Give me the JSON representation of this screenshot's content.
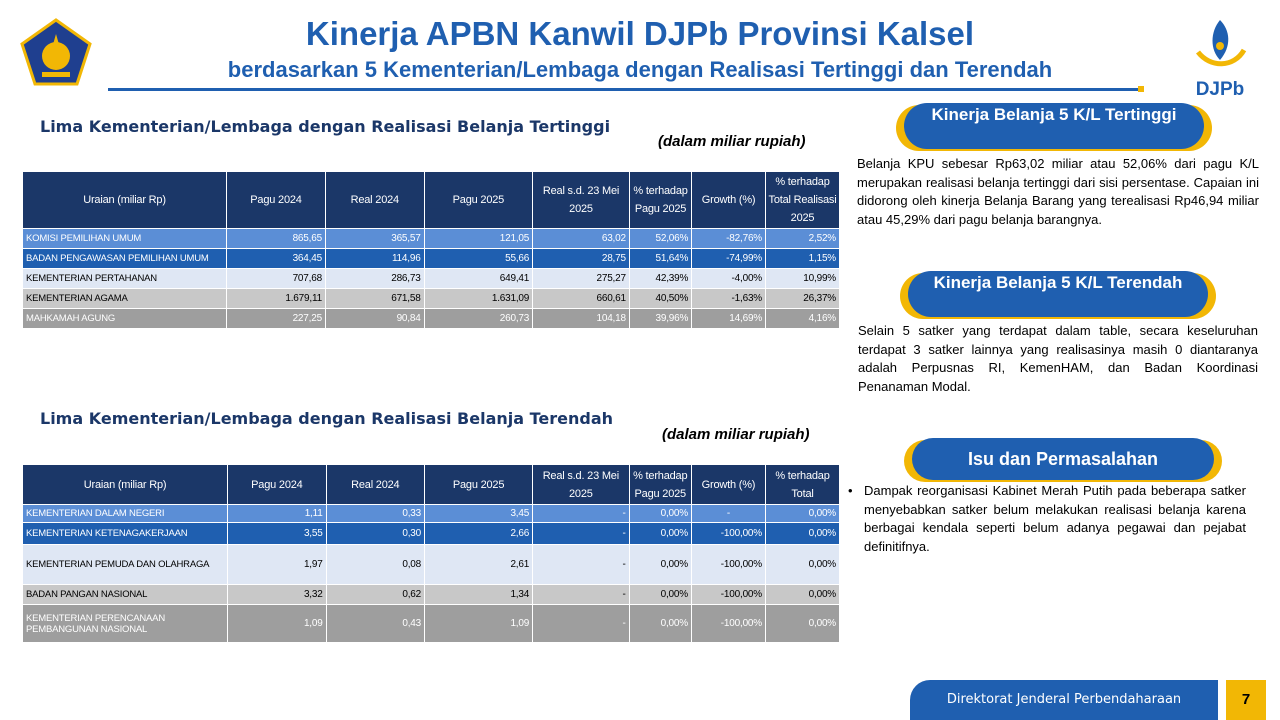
{
  "header": {
    "title": "Kinerja APBN Kanwil DJPb Provinsi Kalsel",
    "subtitle": "berdasarkan 5 Kementerian/Lembaga dengan Realisasi Tertinggi dan Terendah",
    "right_logo_text": "DJPb"
  },
  "colors": {
    "primary": "#1f5fb0",
    "navy": "#1b3768",
    "gold": "#f2b705"
  },
  "top_section": {
    "title": "Lima Kementerian/Lembaga dengan Realisasi Belanja Tertinggi",
    "unit": "(dalam miliar rupiah)",
    "headers": [
      "Uraian (miliar Rp)",
      "Pagu 2024",
      "Real 2024",
      "Pagu 2025",
      "Real s.d. 23 Mei 2025",
      "% terhadap Pagu 2025",
      "Growth (%)",
      "% terhadap Total Realisasi 2025"
    ],
    "rows": [
      [
        "KOMISI PEMILIHAN UMUM",
        "865,65",
        "365,57",
        "121,05",
        "63,02",
        "52,06%",
        "-82,76%",
        "2,52%"
      ],
      [
        "BADAN PENGAWASAN PEMILIHAN UMUM",
        "364,45",
        "114,96",
        "55,66",
        "28,75",
        "51,64%",
        "-74,99%",
        "1,15%"
      ],
      [
        "KEMENTERIAN PERTAHANAN",
        "707,68",
        "286,73",
        "649,41",
        "275,27",
        "42,39%",
        "-4,00%",
        "10,99%"
      ],
      [
        "KEMENTERIAN AGAMA",
        "1.679,11",
        "671,58",
        "1.631,09",
        "660,61",
        "40,50%",
        "-1,63%",
        "26,37%"
      ],
      [
        "MAHKAMAH AGUNG",
        "227,25",
        "90,84",
        "260,73",
        "104,18",
        "39,96%",
        "14,69%",
        "4,16%"
      ]
    ]
  },
  "bottom_section": {
    "title": "Lima Kementerian/Lembaga dengan Realisasi Belanja Terendah",
    "unit": "(dalam miliar rupiah)",
    "headers": [
      "Uraian (miliar Rp)",
      "Pagu 2024",
      "Real 2024",
      "Pagu 2025",
      "Real s.d. 23 Mei 2025",
      "% terhadap Pagu 2025",
      "Growth (%)",
      "% terhadap Total"
    ],
    "rows": [
      [
        "KEMENTERIAN DALAM NEGERI",
        "1,11",
        "0,33",
        "3,45",
        "-",
        "0,00%",
        "-",
        "0,00%"
      ],
      [
        "KEMENTERIAN KETENAGAKERJAAN",
        "3,55",
        "0,30",
        "2,66",
        "-",
        "0,00%",
        "-100,00%",
        "0,00%"
      ],
      [
        "KEMENTERIAN PEMUDA DAN OLAHRAGA",
        "1,97",
        "0,08",
        "2,61",
        "-",
        "0,00%",
        "-100,00%",
        "0,00%"
      ],
      [
        "BADAN PANGAN NASIONAL",
        "3,32",
        "0,62",
        "1,34",
        "-",
        "0,00%",
        "-100,00%",
        "0,00%"
      ],
      [
        "KEMENTERIAN PERENCANAAN PEMBANGUNAN NASIONAL",
        "1,09",
        "0,43",
        "1,09",
        "-",
        "0,00%",
        "-100,00%",
        "0,00%"
      ]
    ]
  },
  "panel_top": {
    "title": "Kinerja Belanja 5 K/L Tertinggi",
    "text": "Belanja KPU sebesar Rp63,02 miliar atau 52,06% dari pagu K/L merupakan realisasi belanja tertinggi dari sisi persentase. Capaian ini didorong oleh kinerja Belanja Barang yang terealisasi Rp46,94 miliar atau 45,29% dari pagu belanja barangnya."
  },
  "panel_mid": {
    "title": "Kinerja Belanja 5 K/L Terendah",
    "text": "Selain 5 satker yang terdapat dalam table, secara keseluruhan terdapat 3 satker lainnya yang realisasinya masih 0 diantaranya adalah Perpusnas RI, KemenHAM, dan Badan Koordinasi Penanaman Modal."
  },
  "panel_bottom": {
    "title": "Isu dan Permasalahan",
    "bullet": "Dampak reorganisasi Kabinet Merah Putih pada beberapa satker menyebabkan satker belum melakukan realisasi belanja karena berbagai kendala seperti belum adanya pegawai dan pejabat definitifnya."
  },
  "footer": {
    "org": "Direktorat Jenderal Perbendaharaan",
    "page": "7"
  }
}
